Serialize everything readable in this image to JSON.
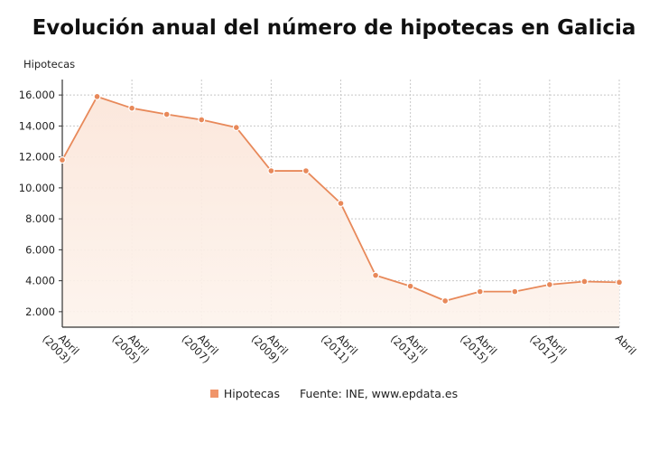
{
  "chart_data": {
    "type": "area",
    "title": "Evolución anual del número de hipotecas en Galicia",
    "ylabel": "Hipotecas",
    "xlabel": "",
    "ylim": [
      1000,
      17000
    ],
    "yticks": [
      "2.000",
      "4.000",
      "6.000",
      "8.000",
      "10.000",
      "12.000",
      "14.000",
      "16.000"
    ],
    "ytick_values": [
      2000,
      4000,
      6000,
      8000,
      10000,
      12000,
      14000,
      16000
    ],
    "x_tick_labels": [
      {
        "index": 0,
        "line1": "Abril",
        "line2": "(2003)"
      },
      {
        "index": 2,
        "line1": "Abril",
        "line2": "(2005)"
      },
      {
        "index": 4,
        "line1": "Abril",
        "line2": "(2007)"
      },
      {
        "index": 6,
        "line1": "Abril",
        "line2": "(2009)"
      },
      {
        "index": 8,
        "line1": "Abril",
        "line2": "(2011)"
      },
      {
        "index": 10,
        "line1": "Abril",
        "line2": "(2013)"
      },
      {
        "index": 12,
        "line1": "Abril",
        "line2": "(2015)"
      },
      {
        "index": 14,
        "line1": "Abril",
        "line2": "(2017)"
      },
      {
        "index": 16,
        "line1": "Abril",
        "line2": ""
      }
    ],
    "x": [
      2003,
      2004,
      2005,
      2006,
      2007,
      2008,
      2009,
      2010,
      2011,
      2012,
      2013,
      2014,
      2015,
      2016,
      2017,
      2018,
      2019
    ],
    "series": [
      {
        "name": "Hipotecas",
        "color": "#e8895a",
        "values": [
          11800,
          15900,
          15150,
          14750,
          14400,
          13900,
          11100,
          11100,
          9000,
          4350,
          3650,
          2700,
          3300,
          3300,
          3750,
          3950,
          3900
        ]
      }
    ],
    "grid": true,
    "legend_position": "bottom",
    "source": "Fuente: INE, www.epdata.es"
  }
}
